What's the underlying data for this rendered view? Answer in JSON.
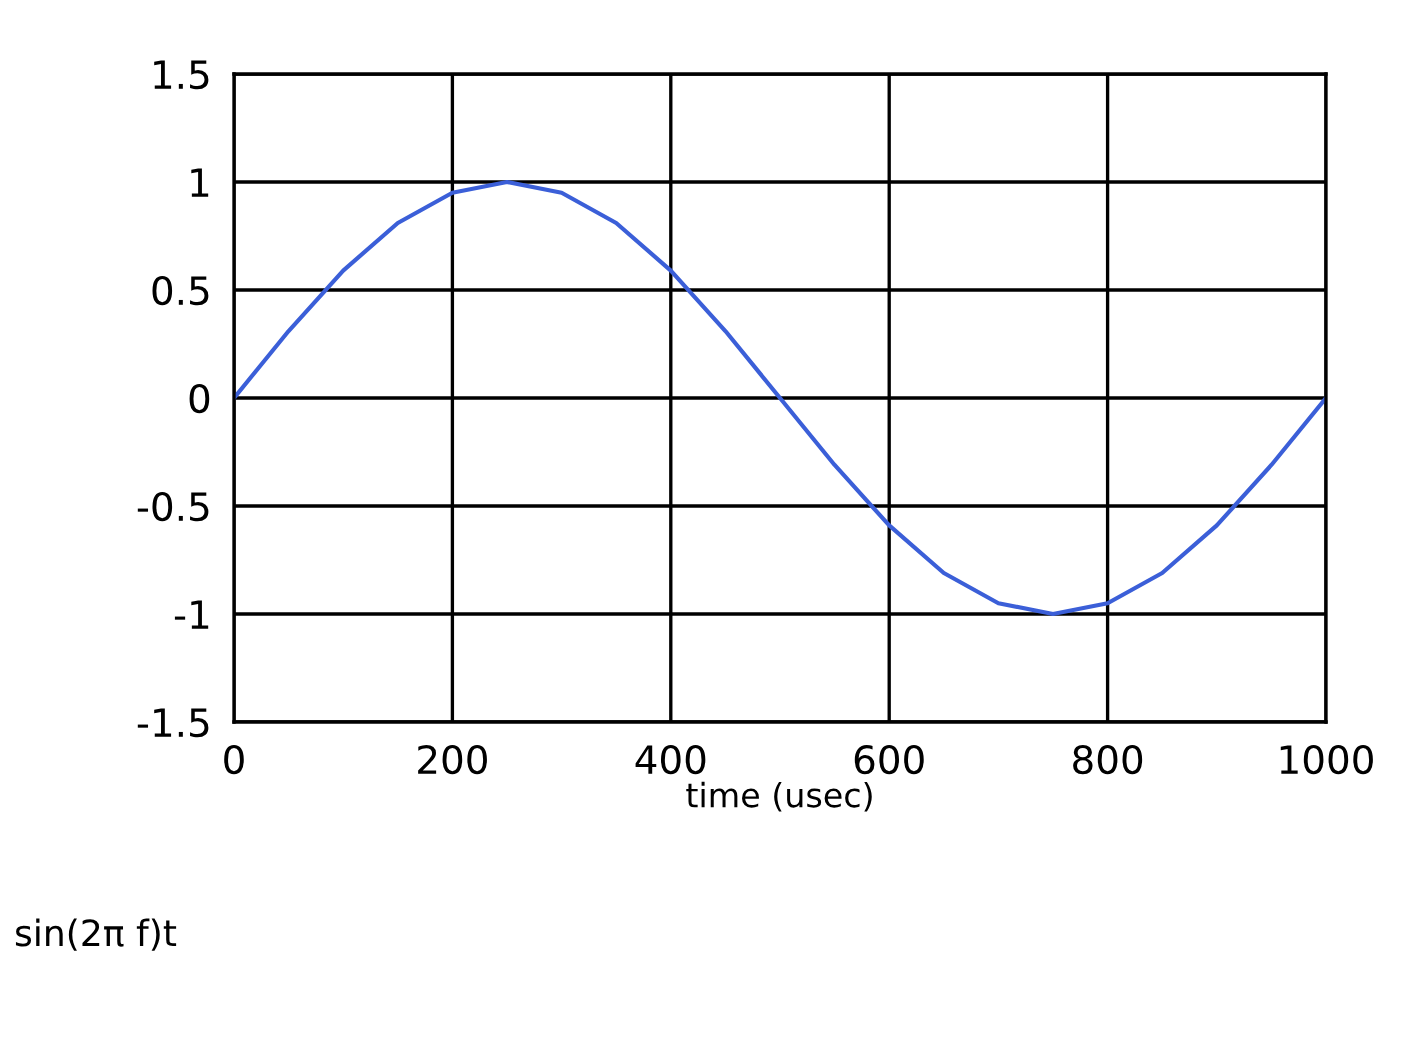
{
  "chart_data": {
    "type": "line",
    "xlabel": "time (usec)",
    "annotations": [
      "sin(2π f)t"
    ],
    "x": [
      0,
      50,
      100,
      150,
      200,
      250,
      300,
      350,
      400,
      450,
      500,
      550,
      600,
      650,
      700,
      750,
      800,
      850,
      900,
      950,
      1000
    ],
    "series": [
      {
        "color": "#3b5fd8",
        "values": [
          0,
          0.31,
          0.59,
          0.81,
          0.95,
          1,
          0.95,
          0.81,
          0.59,
          0.31,
          0,
          -0.31,
          -0.59,
          -0.81,
          -0.95,
          -1,
          -0.95,
          -0.81,
          -0.59,
          -0.31,
          0
        ]
      }
    ],
    "xlim": [
      0,
      1000
    ],
    "xticks": [
      0,
      200,
      400,
      600,
      800,
      1000
    ],
    "ylim": [
      -1.5,
      1.5
    ],
    "yticks": [
      -1.5,
      -1,
      -0.5,
      0,
      0.5,
      1,
      1.5
    ],
    "grid": true,
    "marker": "none",
    "line_style": "solid"
  }
}
